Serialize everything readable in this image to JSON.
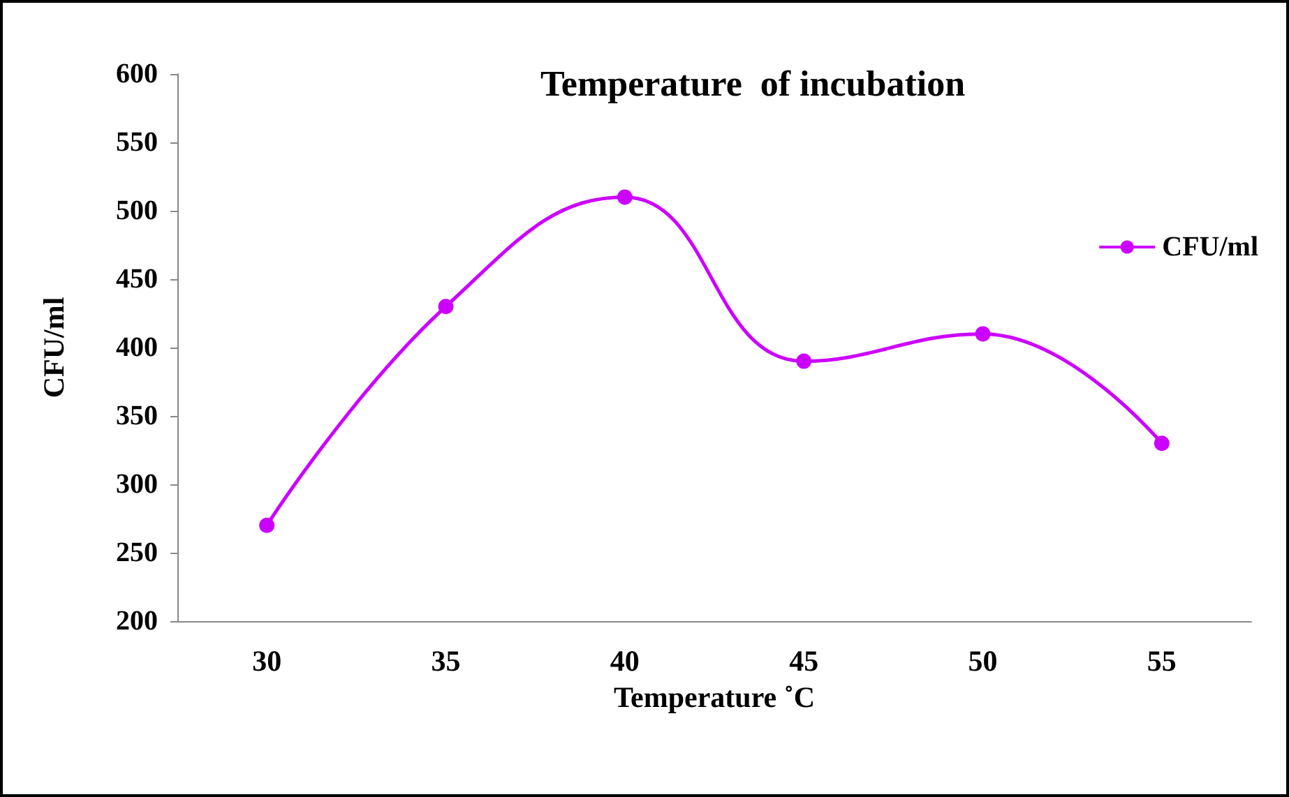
{
  "chart_data": {
    "type": "line",
    "title": "Temperature  of incubation",
    "xlabel": "Temperature ˚C",
    "ylabel": "CFU/ml",
    "categories": [
      "30",
      "35",
      "40",
      "45",
      "50",
      "55"
    ],
    "series": [
      {
        "name": "CFU/ml",
        "color": "#cc00ff",
        "values": [
          270,
          430,
          510,
          390,
          410,
          330
        ]
      }
    ],
    "ylim": [
      200,
      600
    ],
    "yticks": [
      200,
      250,
      300,
      350,
      400,
      450,
      500,
      550,
      600
    ],
    "grid": false,
    "legend": "right",
    "marker": "circle",
    "line_style": "solid"
  }
}
